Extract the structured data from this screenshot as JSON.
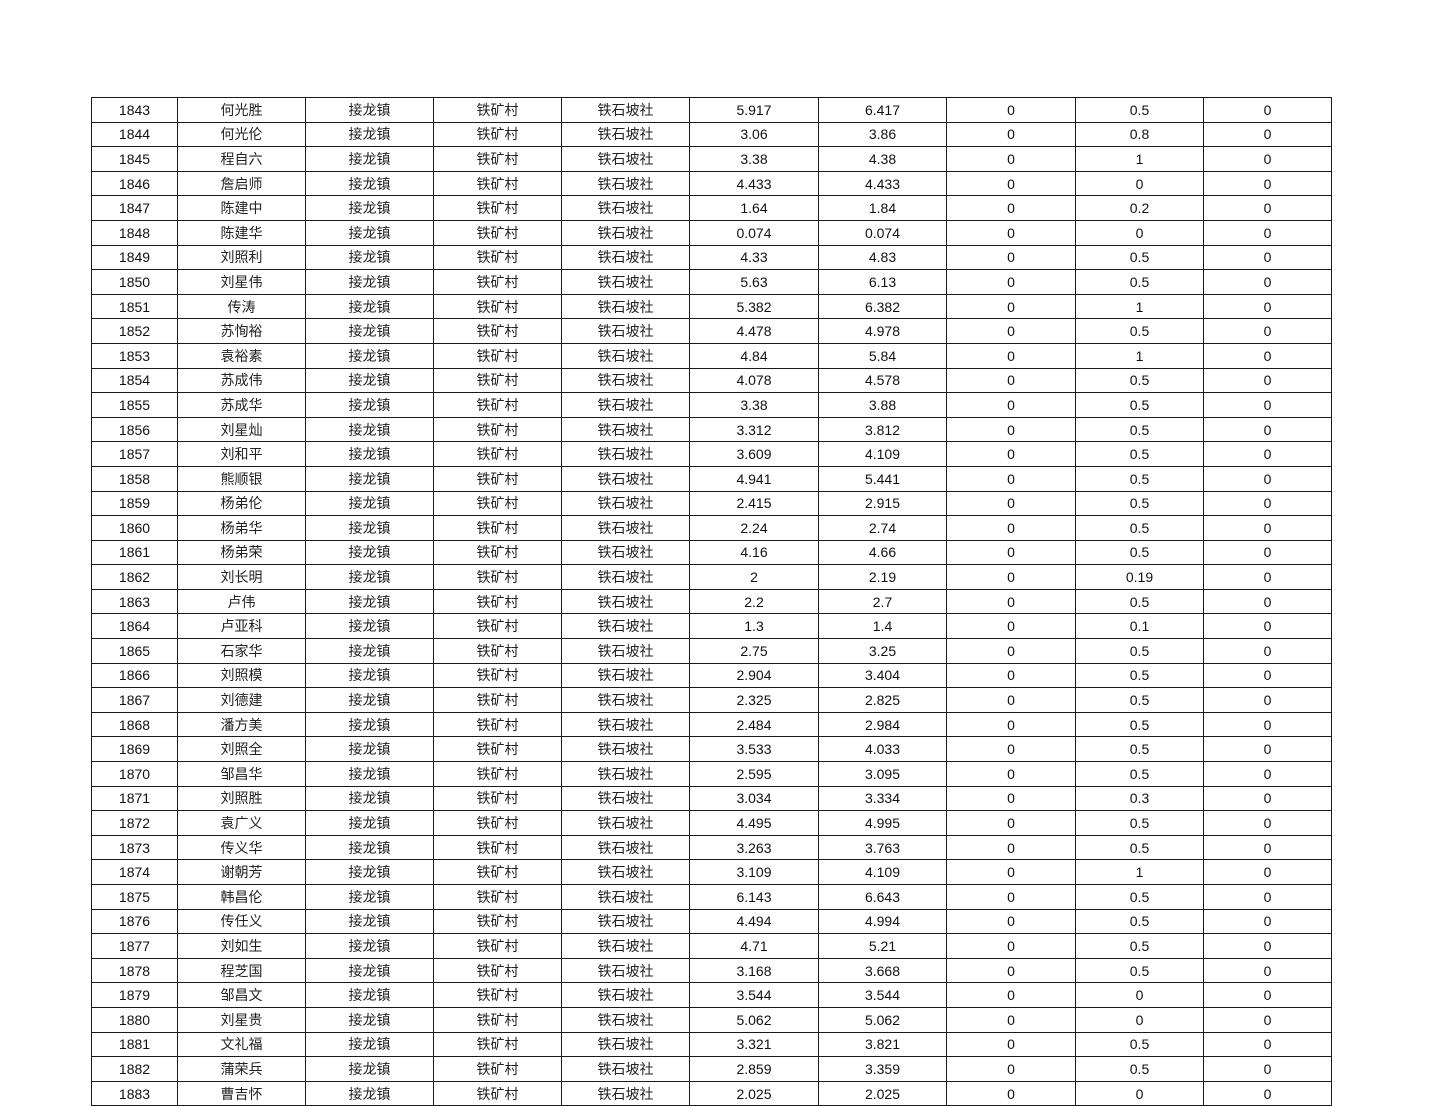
{
  "rows": [
    [
      "1843",
      "何光胜",
      "接龙镇",
      "铁矿村",
      "铁石坡社",
      "5.917",
      "6.417",
      "0",
      "0.5",
      "0"
    ],
    [
      "1844",
      "何光伦",
      "接龙镇",
      "铁矿村",
      "铁石坡社",
      "3.06",
      "3.86",
      "0",
      "0.8",
      "0"
    ],
    [
      "1845",
      "程自六",
      "接龙镇",
      "铁矿村",
      "铁石坡社",
      "3.38",
      "4.38",
      "0",
      "1",
      "0"
    ],
    [
      "1846",
      "詹启师",
      "接龙镇",
      "铁矿村",
      "铁石坡社",
      "4.433",
      "4.433",
      "0",
      "0",
      "0"
    ],
    [
      "1847",
      "陈建中",
      "接龙镇",
      "铁矿村",
      "铁石坡社",
      "1.64",
      "1.84",
      "0",
      "0.2",
      "0"
    ],
    [
      "1848",
      "陈建华",
      "接龙镇",
      "铁矿村",
      "铁石坡社",
      "0.074",
      "0.074",
      "0",
      "0",
      "0"
    ],
    [
      "1849",
      "刘照利",
      "接龙镇",
      "铁矿村",
      "铁石坡社",
      "4.33",
      "4.83",
      "0",
      "0.5",
      "0"
    ],
    [
      "1850",
      "刘星伟",
      "接龙镇",
      "铁矿村",
      "铁石坡社",
      "5.63",
      "6.13",
      "0",
      "0.5",
      "0"
    ],
    [
      "1851",
      "传涛",
      "接龙镇",
      "铁矿村",
      "铁石坡社",
      "5.382",
      "6.382",
      "0",
      "1",
      "0"
    ],
    [
      "1852",
      "苏恂裕",
      "接龙镇",
      "铁矿村",
      "铁石坡社",
      "4.478",
      "4.978",
      "0",
      "0.5",
      "0"
    ],
    [
      "1853",
      "袁裕素",
      "接龙镇",
      "铁矿村",
      "铁石坡社",
      "4.84",
      "5.84",
      "0",
      "1",
      "0"
    ],
    [
      "1854",
      "苏成伟",
      "接龙镇",
      "铁矿村",
      "铁石坡社",
      "4.078",
      "4.578",
      "0",
      "0.5",
      "0"
    ],
    [
      "1855",
      "苏成华",
      "接龙镇",
      "铁矿村",
      "铁石坡社",
      "3.38",
      "3.88",
      "0",
      "0.5",
      "0"
    ],
    [
      "1856",
      "刘星灿",
      "接龙镇",
      "铁矿村",
      "铁石坡社",
      "3.312",
      "3.812",
      "0",
      "0.5",
      "0"
    ],
    [
      "1857",
      "刘和平",
      "接龙镇",
      "铁矿村",
      "铁石坡社",
      "3.609",
      "4.109",
      "0",
      "0.5",
      "0"
    ],
    [
      "1858",
      "熊顺银",
      "接龙镇",
      "铁矿村",
      "铁石坡社",
      "4.941",
      "5.441",
      "0",
      "0.5",
      "0"
    ],
    [
      "1859",
      "杨弟伦",
      "接龙镇",
      "铁矿村",
      "铁石坡社",
      "2.415",
      "2.915",
      "0",
      "0.5",
      "0"
    ],
    [
      "1860",
      "杨弟华",
      "接龙镇",
      "铁矿村",
      "铁石坡社",
      "2.24",
      "2.74",
      "0",
      "0.5",
      "0"
    ],
    [
      "1861",
      "杨弟荣",
      "接龙镇",
      "铁矿村",
      "铁石坡社",
      "4.16",
      "4.66",
      "0",
      "0.5",
      "0"
    ],
    [
      "1862",
      "刘长明",
      "接龙镇",
      "铁矿村",
      "铁石坡社",
      "2",
      "2.19",
      "0",
      "0.19",
      "0"
    ],
    [
      "1863",
      "卢伟",
      "接龙镇",
      "铁矿村",
      "铁石坡社",
      "2.2",
      "2.7",
      "0",
      "0.5",
      "0"
    ],
    [
      "1864",
      "卢亚科",
      "接龙镇",
      "铁矿村",
      "铁石坡社",
      "1.3",
      "1.4",
      "0",
      "0.1",
      "0"
    ],
    [
      "1865",
      "石家华",
      "接龙镇",
      "铁矿村",
      "铁石坡社",
      "2.75",
      "3.25",
      "0",
      "0.5",
      "0"
    ],
    [
      "1866",
      "刘照模",
      "接龙镇",
      "铁矿村",
      "铁石坡社",
      "2.904",
      "3.404",
      "0",
      "0.5",
      "0"
    ],
    [
      "1867",
      "刘德建",
      "接龙镇",
      "铁矿村",
      "铁石坡社",
      "2.325",
      "2.825",
      "0",
      "0.5",
      "0"
    ],
    [
      "1868",
      "潘方美",
      "接龙镇",
      "铁矿村",
      "铁石坡社",
      "2.484",
      "2.984",
      "0",
      "0.5",
      "0"
    ],
    [
      "1869",
      "刘照全",
      "接龙镇",
      "铁矿村",
      "铁石坡社",
      "3.533",
      "4.033",
      "0",
      "0.5",
      "0"
    ],
    [
      "1870",
      "邹昌华",
      "接龙镇",
      "铁矿村",
      "铁石坡社",
      "2.595",
      "3.095",
      "0",
      "0.5",
      "0"
    ],
    [
      "1871",
      "刘照胜",
      "接龙镇",
      "铁矿村",
      "铁石坡社",
      "3.034",
      "3.334",
      "0",
      "0.3",
      "0"
    ],
    [
      "1872",
      "袁广义",
      "接龙镇",
      "铁矿村",
      "铁石坡社",
      "4.495",
      "4.995",
      "0",
      "0.5",
      "0"
    ],
    [
      "1873",
      "传义华",
      "接龙镇",
      "铁矿村",
      "铁石坡社",
      "3.263",
      "3.763",
      "0",
      "0.5",
      "0"
    ],
    [
      "1874",
      "谢朝芳",
      "接龙镇",
      "铁矿村",
      "铁石坡社",
      "3.109",
      "4.109",
      "0",
      "1",
      "0"
    ],
    [
      "1875",
      "韩昌伦",
      "接龙镇",
      "铁矿村",
      "铁石坡社",
      "6.143",
      "6.643",
      "0",
      "0.5",
      "0"
    ],
    [
      "1876",
      "传任义",
      "接龙镇",
      "铁矿村",
      "铁石坡社",
      "4.494",
      "4.994",
      "0",
      "0.5",
      "0"
    ],
    [
      "1877",
      "刘如生",
      "接龙镇",
      "铁矿村",
      "铁石坡社",
      "4.71",
      "5.21",
      "0",
      "0.5",
      "0"
    ],
    [
      "1878",
      "程芝国",
      "接龙镇",
      "铁矿村",
      "铁石坡社",
      "3.168",
      "3.668",
      "0",
      "0.5",
      "0"
    ],
    [
      "1879",
      "邹昌文",
      "接龙镇",
      "铁矿村",
      "铁石坡社",
      "3.544",
      "3.544",
      "0",
      "0",
      "0"
    ],
    [
      "1880",
      "刘星贵",
      "接龙镇",
      "铁矿村",
      "铁石坡社",
      "5.062",
      "5.062",
      "0",
      "0",
      "0"
    ],
    [
      "1881",
      "文礼福",
      "接龙镇",
      "铁矿村",
      "铁石坡社",
      "3.321",
      "3.821",
      "0",
      "0.5",
      "0"
    ],
    [
      "1882",
      "蒲荣兵",
      "接龙镇",
      "铁矿村",
      "铁石坡社",
      "2.859",
      "3.359",
      "0",
      "0.5",
      "0"
    ],
    [
      "1883",
      "曹吉怀",
      "接龙镇",
      "铁矿村",
      "铁石坡社",
      "2.025",
      "2.025",
      "0",
      "0",
      "0"
    ]
  ]
}
